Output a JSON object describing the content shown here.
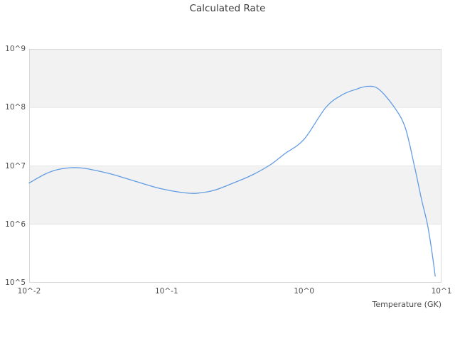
{
  "chart_data": {
    "type": "line",
    "title": "Calculated Rate",
    "xlabel": "Temperature (GK)",
    "ylabel": "",
    "x_scale": "log",
    "y_scale": "log",
    "xlim": [
      0.01,
      10
    ],
    "ylim": [
      100000,
      1000000000
    ],
    "grid": "horizontal-decade-bands",
    "legend": "none",
    "x_ticks": [
      {
        "value": 0.01,
        "label": "10^-2"
      },
      {
        "value": 0.1,
        "label": "10^-1"
      },
      {
        "value": 1,
        "label": "10^0"
      },
      {
        "value": 10,
        "label": "10^1"
      }
    ],
    "y_ticks": [
      {
        "value": 1000000000.0,
        "label": "10^9"
      },
      {
        "value": 100000000.0,
        "label": "10^8"
      },
      {
        "value": 10000000.0,
        "label": "10^7"
      },
      {
        "value": 1000000.0,
        "label": "10^6"
      },
      {
        "value": 100000.0,
        "label": "10^5"
      }
    ],
    "series": [
      {
        "name": "calculated-rate",
        "color": "#639CE3",
        "x": [
          0.01,
          0.013,
          0.016,
          0.02,
          0.024,
          0.028,
          0.04,
          0.06,
          0.09,
          0.13,
          0.165,
          0.22,
          0.3,
          0.42,
          0.57,
          0.72,
          1.0,
          1.44,
          1.9,
          2.4,
          2.9,
          3.5,
          4.55,
          5.45,
          6.35,
          7.15,
          7.9,
          8.5,
          9.0
        ],
        "y": [
          5100000.0,
          7200000.0,
          8600000.0,
          9300000.0,
          9200000.0,
          8700000.0,
          7200000.0,
          5400000.0,
          4100000.0,
          3500000.0,
          3400000.0,
          3800000.0,
          5000000.0,
          7000000.0,
          10500000.0,
          16000000.0,
          28500000.0,
          100000000.0,
          165000000.0,
          205000000.0,
          230000000.0,
          205000000.0,
          100000000.0,
          45000000.0,
          10000000.0,
          2700000.0,
          1000000.0,
          350000.0,
          130000.0
        ]
      }
    ]
  },
  "colors": {
    "background": "#ffffff",
    "band": "#f2f2f2",
    "frame": "#d9d9d9",
    "gridline": "#e8e8e8",
    "title_text": "#3c3c3c",
    "tick_text": "#4f4f4f",
    "line": "#639CE3"
  }
}
